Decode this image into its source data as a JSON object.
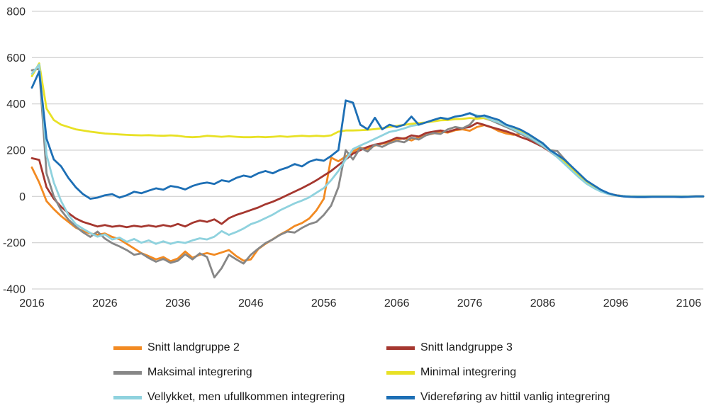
{
  "chart_data": {
    "type": "line",
    "title": "",
    "xlabel": "",
    "ylabel": "",
    "x_start": 2016,
    "x_end": 2108,
    "x_ticks": [
      2016,
      2026,
      2036,
      2046,
      2056,
      2066,
      2076,
      2086,
      2096,
      2106
    ],
    "y_ticks": [
      800,
      600,
      400,
      200,
      0,
      -200,
      -400
    ],
    "ylim": [
      -400,
      800
    ],
    "grid": true,
    "legend_position": "bottom",
    "gridline_color": "#c9c9c9",
    "series": [
      {
        "name": "Snitt landgruppe 2",
        "color": "#F28A22",
        "values": [
          125,
          60,
          -20,
          -55,
          -85,
          -110,
          -135,
          -150,
          -160,
          -165,
          -160,
          -175,
          -185,
          -205,
          -225,
          -245,
          -258,
          -272,
          -262,
          -280,
          -268,
          -238,
          -265,
          -252,
          -245,
          -252,
          -242,
          -232,
          -258,
          -278,
          -272,
          -228,
          -205,
          -185,
          -165,
          -148,
          -128,
          -115,
          -95,
          -60,
          -10,
          168,
          152,
          172,
          195,
          210,
          205,
          220,
          228,
          235,
          245,
          252,
          242,
          256,
          265,
          272,
          280,
          276,
          286,
          290,
          284,
          300,
          308,
          298,
          282,
          272,
          266,
          270,
          255,
          240,
          224,
          200,
          176,
          150,
          120,
          90,
          62,
          40,
          24,
          12,
          5,
          2,
          0,
          0,
          0,
          0,
          0,
          0,
          0,
          0,
          0,
          0,
          0
        ]
      },
      {
        "name": "Snitt landgruppe 3",
        "color": "#A5372F",
        "values": [
          165,
          158,
          40,
          -10,
          -45,
          -72,
          -95,
          -110,
          -120,
          -130,
          -124,
          -131,
          -127,
          -133,
          -127,
          -131,
          -125,
          -131,
          -124,
          -130,
          -119,
          -130,
          -114,
          -104,
          -110,
          -99,
          -119,
          -94,
          -80,
          -70,
          -59,
          -48,
          -34,
          -23,
          -9,
          6,
          21,
          36,
          52,
          70,
          90,
          110,
          135,
          160,
          185,
          200,
          214,
          224,
          230,
          240,
          254,
          249,
          264,
          259,
          274,
          280,
          285,
          279,
          289,
          295,
          300,
          318,
          309,
          299,
          290,
          281,
          270,
          256,
          245,
          230,
          214,
          194,
          170,
          144,
          115,
          88,
          62,
          42,
          25,
          12,
          5,
          1,
          0,
          0,
          0,
          0,
          0,
          0,
          0,
          0,
          0,
          0,
          0
        ]
      },
      {
        "name": "Maksimal integrering",
        "color": "#878787",
        "values": [
          545,
          552,
          100,
          0,
          -60,
          -100,
          -130,
          -155,
          -175,
          -152,
          -182,
          -202,
          -216,
          -232,
          -252,
          -246,
          -266,
          -282,
          -270,
          -287,
          -278,
          -250,
          -272,
          -246,
          -262,
          -350,
          -310,
          -252,
          -272,
          -290,
          -252,
          -226,
          -202,
          -186,
          -166,
          -152,
          -156,
          -136,
          -120,
          -110,
          -80,
          -40,
          40,
          200,
          160,
          210,
          194,
          224,
          214,
          230,
          240,
          234,
          254,
          246,
          264,
          274,
          270,
          290,
          300,
          294,
          310,
          348,
          338,
          328,
          314,
          300,
          286,
          270,
          254,
          236,
          216,
          200,
          196,
          160,
          126,
          95,
          66,
          42,
          25,
          12,
          5,
          1,
          0,
          0,
          0,
          0,
          0,
          0,
          0,
          0,
          0,
          0,
          0
        ]
      },
      {
        "name": "Minimal integrering",
        "color": "#E8E125",
        "values": [
          520,
          575,
          380,
          330,
          310,
          300,
          290,
          285,
          280,
          276,
          272,
          270,
          268,
          266,
          265,
          264,
          265,
          263,
          262,
          264,
          262,
          258,
          256,
          258,
          262,
          260,
          258,
          260,
          258,
          256,
          256,
          258,
          256,
          258,
          260,
          258,
          260,
          262,
          260,
          262,
          260,
          264,
          280,
          285,
          285,
          286,
          288,
          291,
          295,
          300,
          305,
          309,
          314,
          317,
          320,
          324,
          329,
          330,
          334,
          335,
          339,
          336,
          339,
          330,
          320,
          309,
          295,
          280,
          264,
          245,
          226,
          201,
          176,
          147,
          117,
          87,
          61,
          40,
          23,
          11,
          4,
          1,
          0,
          0,
          0,
          0,
          0,
          0,
          0,
          0,
          0,
          0,
          0
        ]
      },
      {
        "name": "Vellykket, men ufullkommen integrering",
        "color": "#8FD2DE",
        "values": [
          530,
          570,
          180,
          60,
          -20,
          -80,
          -120,
          -140,
          -158,
          -174,
          -164,
          -186,
          -178,
          -196,
          -184,
          -200,
          -190,
          -205,
          -194,
          -205,
          -196,
          -201,
          -190,
          -181,
          -186,
          -174,
          -150,
          -166,
          -154,
          -139,
          -120,
          -109,
          -94,
          -79,
          -60,
          -45,
          -30,
          -18,
          -4,
          16,
          36,
          70,
          110,
          160,
          205,
          220,
          234,
          249,
          264,
          279,
          285,
          294,
          305,
          310,
          320,
          330,
          340,
          336,
          345,
          350,
          358,
          350,
          344,
          330,
          319,
          305,
          290,
          274,
          259,
          240,
          220,
          195,
          169,
          140,
          110,
          81,
          55,
          36,
          20,
          10,
          4,
          2,
          0,
          0,
          0,
          0,
          0,
          0,
          0,
          0,
          0,
          0,
          0
        ]
      },
      {
        "name": "Videreføring av hittil vanlig integrering",
        "color": "#1D6FB5",
        "values": [
          470,
          540,
          250,
          160,
          130,
          80,
          40,
          10,
          -10,
          -5,
          5,
          10,
          -5,
          5,
          20,
          14,
          25,
          35,
          29,
          45,
          40,
          30,
          45,
          55,
          60,
          54,
          70,
          64,
          80,
          90,
          84,
          100,
          110,
          100,
          115,
          125,
          140,
          130,
          150,
          160,
          154,
          175,
          200,
          415,
          405,
          310,
          290,
          340,
          290,
          310,
          300,
          310,
          345,
          310,
          320,
          330,
          340,
          334,
          345,
          350,
          360,
          345,
          350,
          340,
          330,
          310,
          300,
          288,
          270,
          250,
          230,
          200,
          180,
          158,
          128,
          98,
          68,
          48,
          28,
          14,
          5,
          0,
          -2,
          -3,
          -3,
          -2,
          -2,
          -2,
          -2,
          -3,
          -2,
          0,
          0
        ]
      }
    ]
  }
}
